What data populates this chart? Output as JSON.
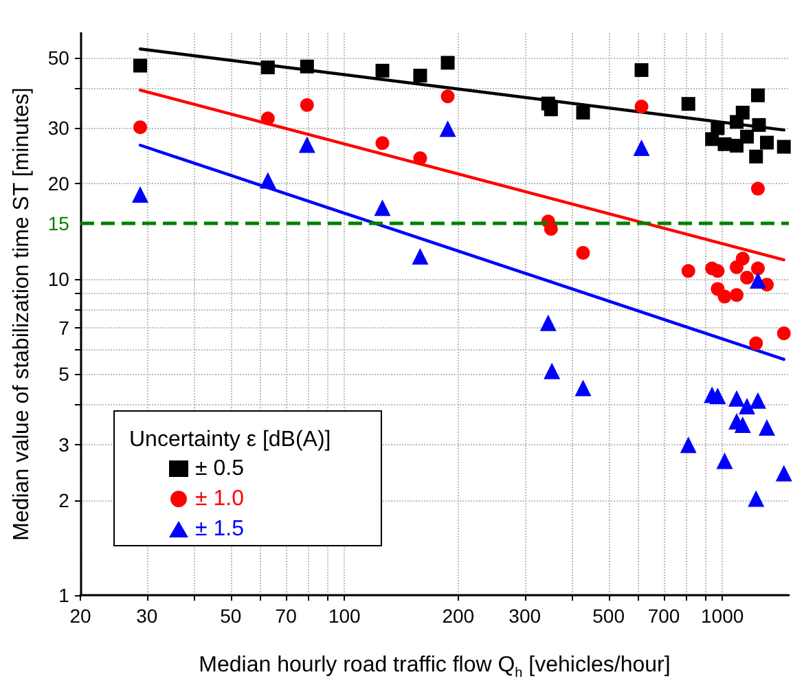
{
  "chart_data": {
    "type": "scatter",
    "xlabel": "Median hourly road traffic flow Q$_{h}$ [vehicles/hour]",
    "ylabel": "Median value of stabilization time ST [minutes]",
    "legend_title": "Uncertainty ε [dB(A)]",
    "log": "xy",
    "grid": true,
    "legend": "bottom left",
    "xlim": [
      20,
      1500
    ],
    "ylim": [
      1,
      60
    ],
    "xticks": [
      20,
      30,
      {
        "value": 40,
        "label": null
      },
      50,
      {
        "value": 60,
        "label": null
      },
      70,
      {
        "value": 80,
        "label": null
      },
      {
        "value": 90,
        "label": null
      },
      100,
      200,
      300,
      {
        "value": 400,
        "label": null
      },
      500,
      {
        "value": 600,
        "label": null
      },
      700,
      {
        "value": 800,
        "label": null
      },
      {
        "value": 900,
        "label": null
      },
      1000
    ],
    "yticks": [
      1,
      2,
      3,
      {
        "value": 4,
        "label": null
      },
      5,
      {
        "value": 6,
        "label": null
      },
      7,
      {
        "value": 8,
        "label": null
      },
      {
        "value": 9,
        "label": null
      },
      10,
      20,
      30,
      {
        "value": 40,
        "label": null
      },
      50
    ],
    "ref_lines": [
      {
        "axis": "y",
        "value": 15,
        "label": "15",
        "color": "#008000",
        "line_style": "dashed"
      }
    ],
    "series": [
      {
        "name": "± 0.5",
        "marker": "square",
        "color": "#000000",
        "x": [
          28.8,
          62.7,
          79.6,
          126,
          158.6,
          187.6,
          346,
          352,
          428,
          611,
          813,
          939,
          972,
          1014,
          1091,
          1091,
          1132,
          1162,
          1242,
          1250,
          1228,
          1312,
          1455
        ],
        "values": [
          47.3,
          46.7,
          47,
          45.6,
          44,
          48.3,
          35.9,
          34.4,
          33.6,
          45.8,
          35.8,
          27.7,
          30,
          26.7,
          31.4,
          26.4,
          33.6,
          28.2,
          38.1,
          30.7,
          24.4,
          27,
          26.2
        ]
      },
      {
        "name": "± 1.0",
        "marker": "circle",
        "color": "#ff0000",
        "x": [
          28.8,
          62.7,
          79.6,
          126,
          158.6,
          187.6,
          346,
          352,
          428,
          611,
          813,
          939,
          972,
          972,
          1014,
          1091,
          1091,
          1132,
          1162,
          1242,
          1242,
          1312,
          1228,
          1455
        ],
        "values": [
          30.2,
          32.2,
          35.5,
          26.9,
          24.1,
          37.8,
          15.2,
          14.4,
          12.1,
          35.1,
          10.6,
          10.8,
          10.6,
          9.3,
          8.8,
          8.9,
          10.9,
          11.6,
          10.1,
          10.8,
          19.3,
          9.6,
          6.26,
          6.73
        ]
      },
      {
        "name": "± 1.5",
        "marker": "triangle",
        "color": "#0000ff",
        "x": [
          28.8,
          62.7,
          79.6,
          126,
          158.6,
          187.6,
          611,
          1242,
          346,
          354,
          428,
          813,
          939,
          972,
          1014,
          1091,
          1091,
          1132,
          1162,
          1242,
          1228,
          1312,
          1455
        ],
        "values": [
          18.5,
          20.5,
          26.6,
          16.8,
          11.8,
          29.9,
          26,
          9.9,
          7.27,
          5.12,
          4.52,
          2.99,
          4.3,
          4.27,
          2.66,
          4.19,
          3.55,
          3.46,
          3.96,
          4.13,
          2.02,
          3.39,
          2.43
        ]
      },
      {
        "type": "line",
        "marker": "none",
        "line_style": "solid",
        "color": "#000000",
        "x": [
          28.8,
          1455
        ],
        "values": [
          53.4,
          29.6
        ]
      },
      {
        "type": "line",
        "marker": "none",
        "line_style": "solid",
        "color": "#ff0000",
        "x": [
          28.8,
          1455
        ],
        "values": [
          39.6,
          11.5
        ]
      },
      {
        "type": "line",
        "marker": "none",
        "line_style": "solid",
        "color": "#0000ff",
        "x": [
          28.8,
          1455
        ],
        "values": [
          26.5,
          5.57
        ]
      }
    ]
  }
}
